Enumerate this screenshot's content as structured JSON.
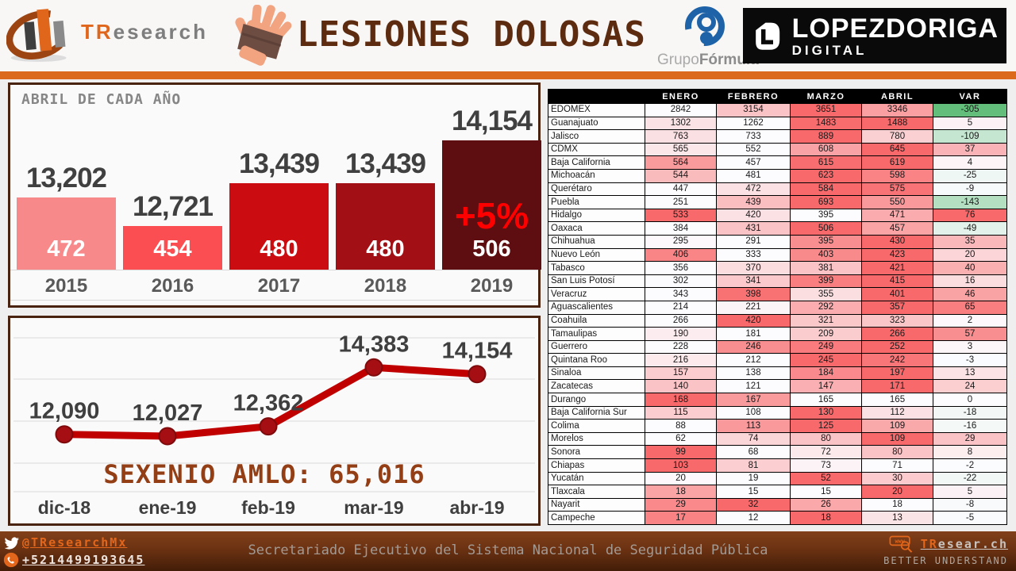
{
  "header": {
    "brand_tr": "TR",
    "brand_rest": "esearch",
    "title": "LESIONES DOLOSAS",
    "formula_grupo": "Grupo",
    "formula_bold": "Fórmula",
    "ld_line1": "LOPEZDORIGA",
    "ld_line2": "DIGITAL"
  },
  "chart_data": [
    {
      "type": "bar",
      "title": "ABRIL DE CADA AÑO",
      "categories": [
        "2015",
        "2016",
        "2017",
        "2018",
        "2019"
      ],
      "values": [
        13202,
        12721,
        13439,
        13439,
        14154
      ],
      "value_labels": [
        "13,202",
        "12,721",
        "13,439",
        "13,439",
        "14,154"
      ],
      "inside_labels": [
        "472",
        "454",
        "480",
        "480",
        "506"
      ],
      "annotation": "+5%",
      "annotation_category": "2019",
      "bar_colors": [
        "#F8898B",
        "#FB4E53",
        "#CB0D11",
        "#A21015",
        "#5E0D10"
      ],
      "baseline": 12000,
      "ylim": [
        12000,
        14500
      ],
      "grid": false
    },
    {
      "type": "line",
      "x": [
        "dic-18",
        "ene-19",
        "feb-19",
        "mar-19",
        "abr-19"
      ],
      "values": [
        12090,
        12027,
        12362,
        14383,
        14154
      ],
      "value_labels": [
        "12,090",
        "12,027",
        "12,362",
        "14,383",
        "14,154"
      ],
      "annotation": "SEXENIO AMLO: 65,016",
      "line_color": "#C00000",
      "marker_color": "#A50E12",
      "ylim": [
        12000,
        14500
      ],
      "grid": true
    }
  ],
  "table": {
    "columns": [
      "ENERO",
      "FEBRERO",
      "MARZO",
      "ABRIL",
      "VAR"
    ],
    "heatmap": {
      "red": "#F8696B",
      "white": "#FCFCFF",
      "green": "#63BE7B",
      "var_max": 76,
      "var_min": -305
    },
    "rows": [
      {
        "state": "EDOMEX",
        "values": [
          2842,
          3154,
          3651,
          3346
        ],
        "var": -305
      },
      {
        "state": "Guanajuato",
        "values": [
          1302,
          1262,
          1483,
          1488
        ],
        "var": 5
      },
      {
        "state": "Jalisco",
        "values": [
          763,
          733,
          889,
          780
        ],
        "var": -109
      },
      {
        "state": "CDMX",
        "values": [
          565,
          552,
          608,
          645
        ],
        "var": 37
      },
      {
        "state": "Baja California",
        "values": [
          564,
          457,
          615,
          619
        ],
        "var": 4
      },
      {
        "state": "Michoacán",
        "values": [
          544,
          481,
          623,
          598
        ],
        "var": -25
      },
      {
        "state": "Querétaro",
        "values": [
          447,
          472,
          584,
          575
        ],
        "var": -9
      },
      {
        "state": "Puebla",
        "values": [
          251,
          439,
          693,
          550
        ],
        "var": -143
      },
      {
        "state": "Hidalgo",
        "values": [
          533,
          420,
          395,
          471
        ],
        "var": 76
      },
      {
        "state": "Oaxaca",
        "values": [
          384,
          431,
          506,
          457
        ],
        "var": -49
      },
      {
        "state": "Chihuahua",
        "values": [
          295,
          291,
          395,
          430
        ],
        "var": 35
      },
      {
        "state": "Nuevo León",
        "values": [
          406,
          333,
          403,
          423
        ],
        "var": 20
      },
      {
        "state": "Tabasco",
        "values": [
          356,
          370,
          381,
          421
        ],
        "var": 40
      },
      {
        "state": "San Luis Potosí",
        "values": [
          302,
          341,
          399,
          415
        ],
        "var": 16
      },
      {
        "state": "Veracruz",
        "values": [
          343,
          398,
          355,
          401
        ],
        "var": 46
      },
      {
        "state": "Aguascalientes",
        "values": [
          214,
          221,
          292,
          357
        ],
        "var": 65
      },
      {
        "state": "Coahuila",
        "values": [
          266,
          420,
          321,
          323
        ],
        "var": 2
      },
      {
        "state": "Tamaulipas",
        "values": [
          190,
          181,
          209,
          266
        ],
        "var": 57
      },
      {
        "state": "Guerrero",
        "values": [
          228,
          246,
          249,
          252
        ],
        "var": 3
      },
      {
        "state": "Quintana Roo",
        "values": [
          216,
          212,
          245,
          242
        ],
        "var": -3
      },
      {
        "state": "Sinaloa",
        "values": [
          157,
          138,
          184,
          197
        ],
        "var": 13
      },
      {
        "state": "Zacatecas",
        "values": [
          140,
          121,
          147,
          171
        ],
        "var": 24
      },
      {
        "state": "Durango",
        "values": [
          168,
          167,
          165,
          165
        ],
        "var": 0
      },
      {
        "state": "Baja California Sur",
        "values": [
          115,
          108,
          130,
          112
        ],
        "var": -18
      },
      {
        "state": "Colima",
        "values": [
          88,
          113,
          125,
          109
        ],
        "var": -16
      },
      {
        "state": "Morelos",
        "values": [
          62,
          74,
          80,
          109
        ],
        "var": 29
      },
      {
        "state": "Sonora",
        "values": [
          99,
          68,
          72,
          80
        ],
        "var": 8
      },
      {
        "state": "Chiapas",
        "values": [
          103,
          81,
          73,
          71
        ],
        "var": -2
      },
      {
        "state": "Yucatán",
        "values": [
          20,
          19,
          52,
          30
        ],
        "var": -22
      },
      {
        "state": "Tlaxcala",
        "values": [
          18,
          15,
          15,
          20
        ],
        "var": 5
      },
      {
        "state": "Nayarit",
        "values": [
          29,
          32,
          26,
          18
        ],
        "var": -8
      },
      {
        "state": "Campeche",
        "values": [
          17,
          12,
          18,
          13
        ],
        "var": -5
      }
    ]
  },
  "footer": {
    "twitter": "@TResearchMx",
    "phone": "+5214499193645",
    "center": "Secretariado Ejecutivo del Sistema Nacional de Seguridad Pública",
    "site_tr": "TR",
    "site_rest": "esear.ch",
    "tagline": "BETTER UNDERSTAND"
  },
  "colors": {
    "accent_orange": "#DC6A1C",
    "panel_border": "#4A2310",
    "title_brown": "#5C2B10",
    "sexenio_brown": "#943E15",
    "annotation_red": "#FF0000"
  }
}
